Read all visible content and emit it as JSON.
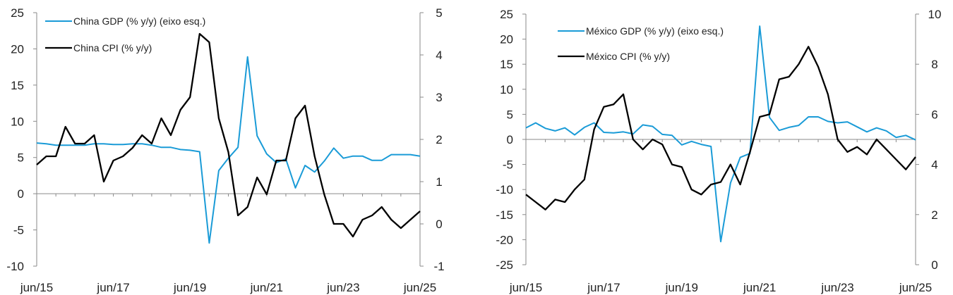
{
  "chart_data": [
    {
      "type": "line",
      "title": "",
      "x_tick_labels": [
        "jun/15",
        "jun/17",
        "jun/19",
        "jun/21",
        "jun/23",
        "jun/25"
      ],
      "left_axis": {
        "ylim": [
          -10,
          25
        ],
        "ticks": [
          "-10",
          "-5",
          "0",
          "5",
          "10",
          "15",
          "20",
          "25"
        ]
      },
      "right_axis": {
        "ylim": [
          -1,
          5
        ],
        "ticks": [
          "-1",
          "0",
          "1",
          "2",
          "3",
          "4",
          "5"
        ]
      },
      "series": [
        {
          "name": "China GDP (% y/y) (eixo esq.)",
          "axis": "left",
          "color": "#1a9bd7",
          "x": [
            2015.5,
            2015.75,
            2016.0,
            2016.25,
            2016.5,
            2016.75,
            2017.0,
            2017.25,
            2017.5,
            2017.75,
            2018.0,
            2018.25,
            2018.5,
            2018.75,
            2019.0,
            2019.25,
            2019.5,
            2019.75,
            2020.0,
            2020.25,
            2020.5,
            2020.75,
            2021.0,
            2021.25,
            2021.5,
            2021.75,
            2022.0,
            2022.25,
            2022.5,
            2022.75,
            2023.0,
            2023.25,
            2023.5,
            2023.75,
            2024.0,
            2024.25,
            2024.5,
            2024.75,
            2025.0,
            2025.25,
            2025.5
          ],
          "values": [
            7.0,
            6.9,
            6.7,
            6.7,
            6.7,
            6.7,
            6.9,
            6.9,
            6.8,
            6.8,
            6.9,
            6.9,
            6.7,
            6.4,
            6.4,
            6.1,
            6.0,
            5.8,
            -6.8,
            3.2,
            4.9,
            6.4,
            18.9,
            8.0,
            5.5,
            4.3,
            4.8,
            0.8,
            3.9,
            3.0,
            4.5,
            6.3,
            4.9,
            5.2,
            5.2,
            4.6,
            4.6,
            5.4,
            5.4,
            5.4,
            5.2
          ]
        },
        {
          "name": "China CPI (% y/y)",
          "axis": "right",
          "color": "#000000",
          "x": [
            2015.5,
            2015.75,
            2016.0,
            2016.25,
            2016.5,
            2016.75,
            2017.0,
            2017.25,
            2017.5,
            2017.75,
            2018.0,
            2018.25,
            2018.5,
            2018.75,
            2019.0,
            2019.25,
            2019.5,
            2019.75,
            2020.0,
            2020.25,
            2020.5,
            2020.75,
            2021.0,
            2021.25,
            2021.5,
            2021.75,
            2022.0,
            2022.25,
            2022.5,
            2022.75,
            2023.0,
            2023.25,
            2023.5,
            2023.75,
            2024.0,
            2024.25,
            2024.5,
            2024.75,
            2025.0,
            2025.25,
            2025.5
          ],
          "values": [
            1.4,
            1.6,
            1.6,
            2.3,
            1.9,
            1.9,
            2.1,
            1.0,
            1.5,
            1.6,
            1.8,
            2.1,
            1.9,
            2.5,
            2.1,
            2.7,
            3.0,
            4.5,
            4.3,
            2.5,
            1.7,
            0.2,
            0.4,
            1.1,
            0.7,
            1.5,
            1.5,
            2.5,
            2.8,
            1.6,
            0.7,
            0.0,
            0.0,
            -0.3,
            0.1,
            0.2,
            0.4,
            0.1,
            -0.1,
            0.1,
            0.3
          ]
        }
      ]
    },
    {
      "type": "line",
      "title": "",
      "x_tick_labels": [
        "jun/15",
        "jun/17",
        "jun/19",
        "jun/21",
        "jun/23",
        "jun/25"
      ],
      "left_axis": {
        "ylim": [
          -25,
          25
        ],
        "ticks": [
          "-25",
          "-20",
          "-15",
          "-10",
          "-5",
          "0",
          "5",
          "10",
          "15",
          "20",
          "25"
        ]
      },
      "right_axis": {
        "ylim": [
          0,
          10
        ],
        "ticks": [
          "0",
          "2",
          "4",
          "6",
          "8",
          "10"
        ]
      },
      "series": [
        {
          "name": "México GDP (% y/y) (eixo esq.)",
          "axis": "left",
          "color": "#1a9bd7",
          "x": [
            2015.5,
            2015.75,
            2016.0,
            2016.25,
            2016.5,
            2016.75,
            2017.0,
            2017.25,
            2017.5,
            2017.75,
            2018.0,
            2018.25,
            2018.5,
            2018.75,
            2019.0,
            2019.25,
            2019.5,
            2019.75,
            2020.0,
            2020.25,
            2020.5,
            2020.75,
            2021.0,
            2021.25,
            2021.5,
            2021.75,
            2022.0,
            2022.25,
            2022.5,
            2022.75,
            2023.0,
            2023.25,
            2023.5,
            2023.75,
            2024.0,
            2024.25,
            2024.5,
            2024.75,
            2025.0,
            2025.25,
            2025.5
          ],
          "values": [
            2.3,
            3.3,
            2.2,
            1.7,
            2.3,
            0.9,
            2.4,
            3.3,
            1.4,
            1.3,
            1.5,
            1.1,
            2.9,
            2.6,
            1.0,
            0.8,
            -1.1,
            -0.4,
            -1.0,
            -1.4,
            -20.4,
            -8.7,
            -3.6,
            -2.8,
            22.6,
            4.4,
            1.8,
            2.4,
            2.8,
            4.5,
            4.5,
            3.6,
            3.3,
            3.5,
            2.5,
            1.5,
            2.3,
            1.7,
            0.4,
            0.8,
            -0.1
          ]
        },
        {
          "name": "México CPI (% y/y)",
          "axis": "right",
          "color": "#000000",
          "x": [
            2015.5,
            2015.75,
            2016.0,
            2016.25,
            2016.5,
            2016.75,
            2017.0,
            2017.25,
            2017.5,
            2017.75,
            2018.0,
            2018.25,
            2018.5,
            2018.75,
            2019.0,
            2019.25,
            2019.5,
            2019.75,
            2020.0,
            2020.25,
            2020.5,
            2020.75,
            2021.0,
            2021.25,
            2021.5,
            2021.75,
            2022.0,
            2022.25,
            2022.5,
            2022.75,
            2023.0,
            2023.25,
            2023.5,
            2023.75,
            2024.0,
            2024.25,
            2024.5,
            2024.75,
            2025.0,
            2025.25,
            2025.5
          ],
          "values": [
            2.8,
            2.5,
            2.2,
            2.6,
            2.5,
            3.0,
            3.4,
            5.4,
            6.3,
            6.4,
            6.8,
            5.0,
            4.6,
            5.0,
            4.8,
            4.0,
            3.9,
            3.0,
            2.8,
            3.2,
            3.3,
            4.0,
            3.2,
            4.5,
            5.9,
            6.0,
            7.4,
            7.5,
            8.0,
            8.7,
            7.9,
            6.8,
            5.0,
            4.5,
            4.7,
            4.4,
            5.0,
            4.6,
            4.2,
            3.8,
            4.3
          ]
        }
      ]
    }
  ]
}
